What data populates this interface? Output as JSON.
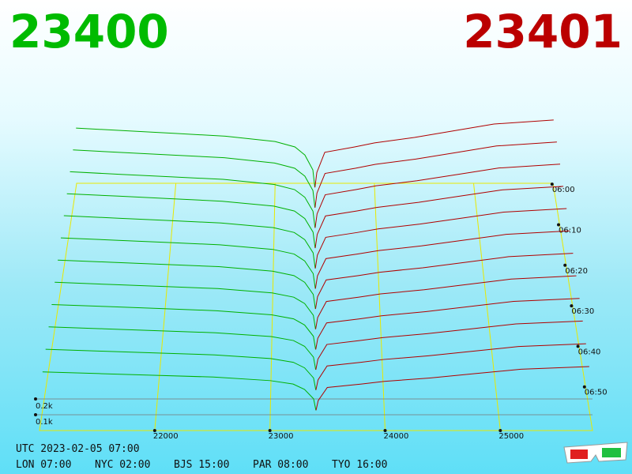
{
  "chart_data": {
    "type": "depth3d",
    "bid_label": "23400",
    "ask_label": "23401",
    "footer": [
      "UTC 2023-02-05 07:00",
      "LON 07:00",
      "NYC 02:00",
      "BJS 15:00",
      "PAR 08:00",
      "TYO 16:00"
    ],
    "xlim": [
      21000,
      25800
    ],
    "xticks": [
      22000,
      23000,
      24000,
      25000
    ],
    "tlim": [
      359,
      420
    ],
    "tticks": [
      {
        "value": 360,
        "label": "06:00"
      },
      {
        "value": 370,
        "label": "06:10"
      },
      {
        "value": 380,
        "label": "06:20"
      },
      {
        "value": 390,
        "label": "06:30"
      },
      {
        "value": 400,
        "label": "06:40"
      },
      {
        "value": 410,
        "label": "06:50"
      }
    ],
    "zticks": [
      {
        "value": 100,
        "label": "0.1k"
      },
      {
        "value": 200,
        "label": "0.2k"
      }
    ],
    "mid": 23400,
    "times": [
      360,
      365,
      370,
      375,
      380,
      385,
      390,
      395,
      400,
      405,
      410,
      415
    ],
    "bids": {
      "color": "#00b000",
      "prices": [
        21000,
        21500,
        22000,
        22500,
        23000,
        23200,
        23300,
        23380,
        23400
      ],
      "depths": [
        [
          440,
          420,
          400,
          380,
          340,
          300,
          240,
          130,
          0
        ],
        [
          422,
          403,
          384,
          365,
          326,
          288,
          230,
          125,
          0
        ],
        [
          405,
          386,
          368,
          350,
          313,
          276,
          221,
          120,
          0
        ],
        [
          387,
          370,
          352,
          334,
          299,
          264,
          211,
          114,
          0
        ],
        [
          370,
          353,
          336,
          319,
          286,
          252,
          202,
          109,
          0
        ],
        [
          352,
          336,
          320,
          304,
          272,
          240,
          192,
          104,
          0
        ],
        [
          334,
          319,
          304,
          289,
          258,
          228,
          182,
          99,
          0
        ],
        [
          317,
          302,
          288,
          274,
          245,
          216,
          173,
          94,
          0
        ],
        [
          299,
          286,
          272,
          258,
          231,
          204,
          163,
          88,
          0
        ],
        [
          282,
          269,
          256,
          243,
          218,
          192,
          154,
          83,
          0
        ],
        [
          264,
          252,
          240,
          228,
          204,
          180,
          144,
          78,
          0
        ],
        [
          246,
          235,
          224,
          213,
          190,
          168,
          134,
          73,
          0
        ]
      ]
    },
    "asks": {
      "color": "#b00000",
      "prices": [
        23401,
        23420,
        23500,
        23800,
        24000,
        24400,
        24800,
        25200,
        25800
      ],
      "depths": [
        [
          0,
          110,
          260,
          300,
          330,
          370,
          420,
          470,
          500
        ],
        [
          0,
          106,
          250,
          288,
          317,
          355,
          403,
          451,
          480
        ],
        [
          0,
          101,
          239,
          276,
          304,
          340,
          386,
          432,
          460
        ],
        [
          0,
          97,
          229,
          264,
          290,
          326,
          370,
          414,
          440
        ],
        [
          0,
          92,
          218,
          252,
          277,
          311,
          353,
          395,
          420
        ],
        [
          0,
          88,
          208,
          240,
          264,
          296,
          336,
          376,
          400
        ],
        [
          0,
          84,
          198,
          228,
          251,
          281,
          319,
          357,
          380
        ],
        [
          0,
          79,
          187,
          216,
          238,
          266,
          302,
          338,
          360
        ],
        [
          0,
          75,
          177,
          204,
          224,
          252,
          286,
          320,
          340
        ],
        [
          0,
          70,
          166,
          192,
          211,
          237,
          269,
          301,
          320
        ],
        [
          0,
          66,
          156,
          180,
          198,
          222,
          252,
          282,
          300
        ],
        [
          0,
          62,
          146,
          168,
          185,
          207,
          235,
          263,
          280
        ]
      ]
    }
  }
}
